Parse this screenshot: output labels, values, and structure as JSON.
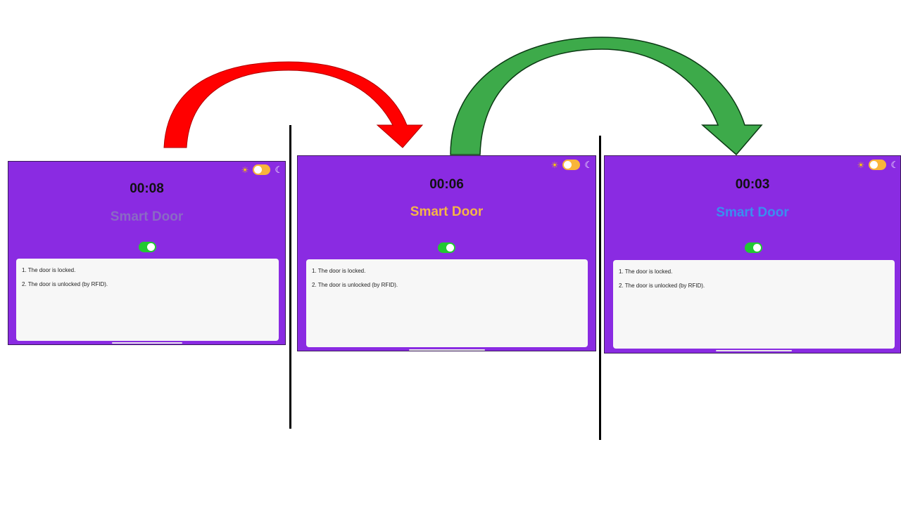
{
  "colors": {
    "screen_bg": "#8a2be2",
    "red_arrow": "#ff0000",
    "green_arrow": "#44d454",
    "toggle_on": "#22c832",
    "theme_toggle": "#f9b53a"
  },
  "screens": [
    {
      "timer": "00:08",
      "title": "Smart Door",
      "title_color": "#8a6ac4",
      "door_toggle_on": true,
      "logs": [
        "1. The door is locked.",
        "2. The door is unlocked (by RFID)."
      ]
    },
    {
      "timer": "00:06",
      "title": "Smart Door",
      "title_color": "#f5b547",
      "door_toggle_on": true,
      "logs": [
        "1. The door is locked.",
        "2. The door is unlocked (by RFID)."
      ]
    },
    {
      "timer": "00:03",
      "title": "Smart Door",
      "title_color": "#3a8ef0",
      "door_toggle_on": true,
      "logs": [
        "1. The door is locked.",
        "2. The door is unlocked (by RFID)."
      ]
    }
  ],
  "icons": {
    "sun": "☀",
    "moon": "☾"
  }
}
